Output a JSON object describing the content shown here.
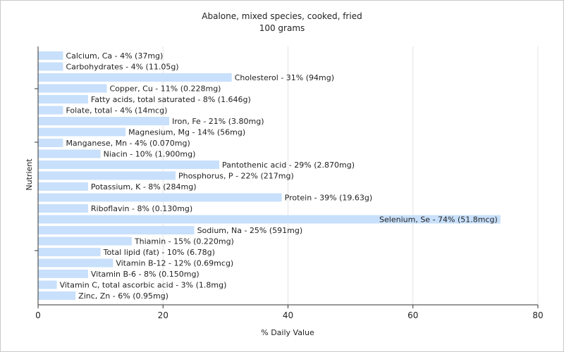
{
  "chart_data": {
    "type": "bar",
    "orientation": "horizontal",
    "title": "Abalone, mixed species, cooked, fried",
    "subtitle": "100 grams",
    "xlabel": "% Daily Value",
    "ylabel": "Nutrient",
    "xlim": [
      0,
      80
    ],
    "xticks": [
      0,
      20,
      40,
      60,
      80
    ],
    "grid": true,
    "bar_color": "#c8e0fb",
    "categories": [
      "Calcium, Ca",
      "Carbohydrates",
      "Cholesterol",
      "Copper, Cu",
      "Fatty acids, total saturated",
      "Folate, total",
      "Iron, Fe",
      "Magnesium, Mg",
      "Manganese, Mn",
      "Niacin",
      "Pantothenic acid",
      "Phosphorus, P",
      "Potassium, K",
      "Protein",
      "Riboflavin",
      "Selenium, Se",
      "Sodium, Na",
      "Thiamin",
      "Total lipid (fat)",
      "Vitamin B-12",
      "Vitamin B-6",
      "Vitamin C, total ascorbic acid",
      "Zinc, Zn"
    ],
    "values": [
      4,
      4,
      31,
      11,
      8,
      4,
      21,
      14,
      4,
      10,
      29,
      22,
      8,
      39,
      8,
      74,
      25,
      15,
      10,
      12,
      8,
      3,
      6
    ],
    "labels": [
      "Calcium, Ca - 4% (37mg)",
      "Carbohydrates - 4% (11.05g)",
      "Cholesterol - 31% (94mg)",
      "Copper, Cu - 11% (0.228mg)",
      "Fatty acids, total saturated - 8% (1.646g)",
      "Folate, total - 4% (14mcg)",
      "Iron, Fe - 21% (3.80mg)",
      "Magnesium, Mg - 14% (56mg)",
      "Manganese, Mn - 4% (0.070mg)",
      "Niacin - 10% (1.900mg)",
      "Pantothenic acid - 29% (2.870mg)",
      "Phosphorus, P - 22% (217mg)",
      "Potassium, K - 8% (284mg)",
      "Protein - 39% (19.63g)",
      "Riboflavin - 8% (0.130mg)",
      "Selenium, Se - 74% (51.8mcg)",
      "Sodium, Na - 25% (591mg)",
      "Thiamin - 15% (0.220mg)",
      "Total lipid (fat) - 10% (6.78g)",
      "Vitamin B-12 - 12% (0.69mcg)",
      "Vitamin B-6 - 8% (0.150mg)",
      "Vitamin C, total ascorbic acid - 3% (1.8mg)",
      "Zinc, Zn - 6% (0.95mg)"
    ]
  }
}
